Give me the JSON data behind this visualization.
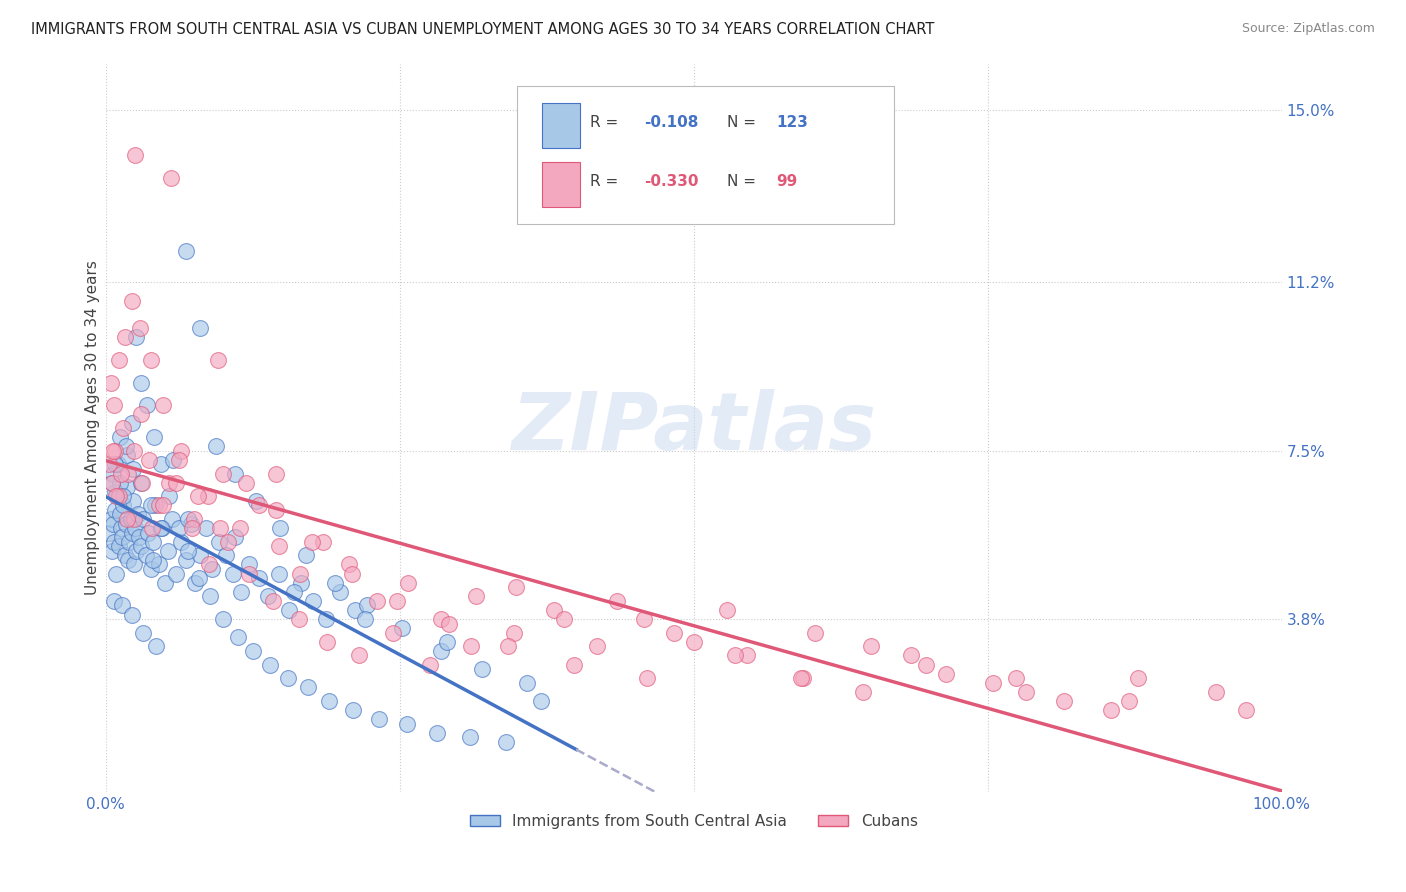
{
  "title": "IMMIGRANTS FROM SOUTH CENTRAL ASIA VS CUBAN UNEMPLOYMENT AMONG AGES 30 TO 34 YEARS CORRELATION CHART",
  "source": "Source: ZipAtlas.com",
  "ylabel": "Unemployment Among Ages 30 to 34 years",
  "xlim": [
    0,
    1.0
  ],
  "ylim": [
    0,
    0.16
  ],
  "yticks": [
    0.038,
    0.075,
    0.112,
    0.15
  ],
  "ytick_labels": [
    "3.8%",
    "7.5%",
    "11.2%",
    "15.0%"
  ],
  "xtick_labels": [
    "0.0%",
    "100.0%"
  ],
  "legend_labels": [
    "Immigrants from South Central Asia",
    "Cubans"
  ],
  "r_blue": -0.108,
  "n_blue": 123,
  "r_pink": -0.33,
  "n_pink": 99,
  "blue_color": "#a8c8e8",
  "pink_color": "#f4a8c0",
  "blue_line_color": "#4472c4",
  "pink_line_color": "#e05878",
  "dashed_line_color": "#aaaacc",
  "background_color": "#ffffff",
  "grid_color": "#cccccc",
  "watermark": "ZIPatlas",
  "title_fontsize": 10.5,
  "axis_label_fontsize": 11,
  "tick_label_fontsize": 11,
  "blue_scatter_x": [
    0.003,
    0.004,
    0.005,
    0.006,
    0.007,
    0.008,
    0.009,
    0.01,
    0.011,
    0.012,
    0.013,
    0.014,
    0.015,
    0.016,
    0.017,
    0.018,
    0.019,
    0.02,
    0.021,
    0.022,
    0.023,
    0.024,
    0.025,
    0.026,
    0.027,
    0.028,
    0.03,
    0.032,
    0.034,
    0.036,
    0.038,
    0.04,
    0.042,
    0.045,
    0.048,
    0.05,
    0.053,
    0.056,
    0.06,
    0.064,
    0.068,
    0.072,
    0.076,
    0.08,
    0.085,
    0.09,
    0.096,
    0.102,
    0.108,
    0.115,
    0.122,
    0.13,
    0.138,
    0.147,
    0.156,
    0.166,
    0.176,
    0.187,
    0.199,
    0.212,
    0.006,
    0.008,
    0.01,
    0.012,
    0.015,
    0.018,
    0.022,
    0.026,
    0.03,
    0.035,
    0.041,
    0.047,
    0.054,
    0.062,
    0.07,
    0.079,
    0.089,
    0.1,
    0.112,
    0.125,
    0.14,
    0.155,
    0.172,
    0.19,
    0.21,
    0.232,
    0.256,
    0.282,
    0.31,
    0.34,
    0.005,
    0.008,
    0.012,
    0.017,
    0.023,
    0.03,
    0.038,
    0.047,
    0.057,
    0.068,
    0.08,
    0.094,
    0.11,
    0.128,
    0.148,
    0.17,
    0.195,
    0.222,
    0.252,
    0.285,
    0.32,
    0.358,
    0.04,
    0.07,
    0.11,
    0.16,
    0.22,
    0.29,
    0.37,
    0.007,
    0.014,
    0.022,
    0.032,
    0.043
  ],
  "blue_scatter_y": [
    0.057,
    0.06,
    0.053,
    0.059,
    0.055,
    0.062,
    0.048,
    0.065,
    0.054,
    0.061,
    0.058,
    0.056,
    0.063,
    0.052,
    0.059,
    0.067,
    0.051,
    0.055,
    0.06,
    0.057,
    0.064,
    0.05,
    0.058,
    0.053,
    0.061,
    0.056,
    0.054,
    0.06,
    0.052,
    0.057,
    0.049,
    0.055,
    0.063,
    0.05,
    0.058,
    0.046,
    0.053,
    0.06,
    0.048,
    0.055,
    0.051,
    0.059,
    0.046,
    0.052,
    0.058,
    0.049,
    0.055,
    0.052,
    0.048,
    0.044,
    0.05,
    0.047,
    0.043,
    0.048,
    0.04,
    0.046,
    0.042,
    0.038,
    0.044,
    0.04,
    0.07,
    0.066,
    0.072,
    0.068,
    0.065,
    0.074,
    0.081,
    0.1,
    0.09,
    0.085,
    0.078,
    0.072,
    0.065,
    0.058,
    0.053,
    0.047,
    0.043,
    0.038,
    0.034,
    0.031,
    0.028,
    0.025,
    0.023,
    0.02,
    0.018,
    0.016,
    0.015,
    0.013,
    0.012,
    0.011,
    0.068,
    0.072,
    0.078,
    0.076,
    0.071,
    0.068,
    0.063,
    0.058,
    0.073,
    0.119,
    0.102,
    0.076,
    0.07,
    0.064,
    0.058,
    0.052,
    0.046,
    0.041,
    0.036,
    0.031,
    0.027,
    0.024,
    0.051,
    0.06,
    0.056,
    0.044,
    0.038,
    0.033,
    0.02,
    0.042,
    0.041,
    0.039,
    0.035,
    0.032
  ],
  "pink_scatter_x": [
    0.003,
    0.005,
    0.008,
    0.011,
    0.015,
    0.019,
    0.024,
    0.03,
    0.037,
    0.045,
    0.054,
    0.064,
    0.075,
    0.087,
    0.1,
    0.114,
    0.13,
    0.147,
    0.165,
    0.185,
    0.207,
    0.231,
    0.257,
    0.285,
    0.315,
    0.347,
    0.381,
    0.418,
    0.458,
    0.5,
    0.545,
    0.593,
    0.644,
    0.698,
    0.755,
    0.815,
    0.878,
    0.944,
    0.006,
    0.009,
    0.013,
    0.018,
    0.024,
    0.031,
    0.039,
    0.049,
    0.06,
    0.073,
    0.088,
    0.104,
    0.122,
    0.142,
    0.164,
    0.188,
    0.215,
    0.244,
    0.276,
    0.311,
    0.349,
    0.39,
    0.435,
    0.483,
    0.535,
    0.591,
    0.651,
    0.715,
    0.783,
    0.855,
    0.004,
    0.007,
    0.011,
    0.016,
    0.022,
    0.029,
    0.038,
    0.049,
    0.062,
    0.078,
    0.097,
    0.119,
    0.145,
    0.175,
    0.209,
    0.248,
    0.292,
    0.342,
    0.398,
    0.46,
    0.528,
    0.603,
    0.685,
    0.774,
    0.87,
    0.97,
    0.025,
    0.055,
    0.095,
    0.145
  ],
  "pink_scatter_y": [
    0.072,
    0.068,
    0.075,
    0.065,
    0.08,
    0.07,
    0.06,
    0.083,
    0.073,
    0.063,
    0.068,
    0.075,
    0.06,
    0.065,
    0.07,
    0.058,
    0.063,
    0.054,
    0.048,
    0.055,
    0.05,
    0.042,
    0.046,
    0.038,
    0.043,
    0.035,
    0.04,
    0.032,
    0.038,
    0.033,
    0.03,
    0.025,
    0.022,
    0.028,
    0.024,
    0.02,
    0.025,
    0.022,
    0.075,
    0.065,
    0.07,
    0.06,
    0.075,
    0.068,
    0.058,
    0.063,
    0.068,
    0.058,
    0.05,
    0.055,
    0.048,
    0.042,
    0.038,
    0.033,
    0.03,
    0.035,
    0.028,
    0.032,
    0.045,
    0.038,
    0.042,
    0.035,
    0.03,
    0.025,
    0.032,
    0.026,
    0.022,
    0.018,
    0.09,
    0.085,
    0.095,
    0.1,
    0.108,
    0.102,
    0.095,
    0.085,
    0.073,
    0.065,
    0.058,
    0.068,
    0.062,
    0.055,
    0.048,
    0.042,
    0.037,
    0.032,
    0.028,
    0.025,
    0.04,
    0.035,
    0.03,
    0.025,
    0.02,
    0.018,
    0.14,
    0.135,
    0.095,
    0.07
  ]
}
